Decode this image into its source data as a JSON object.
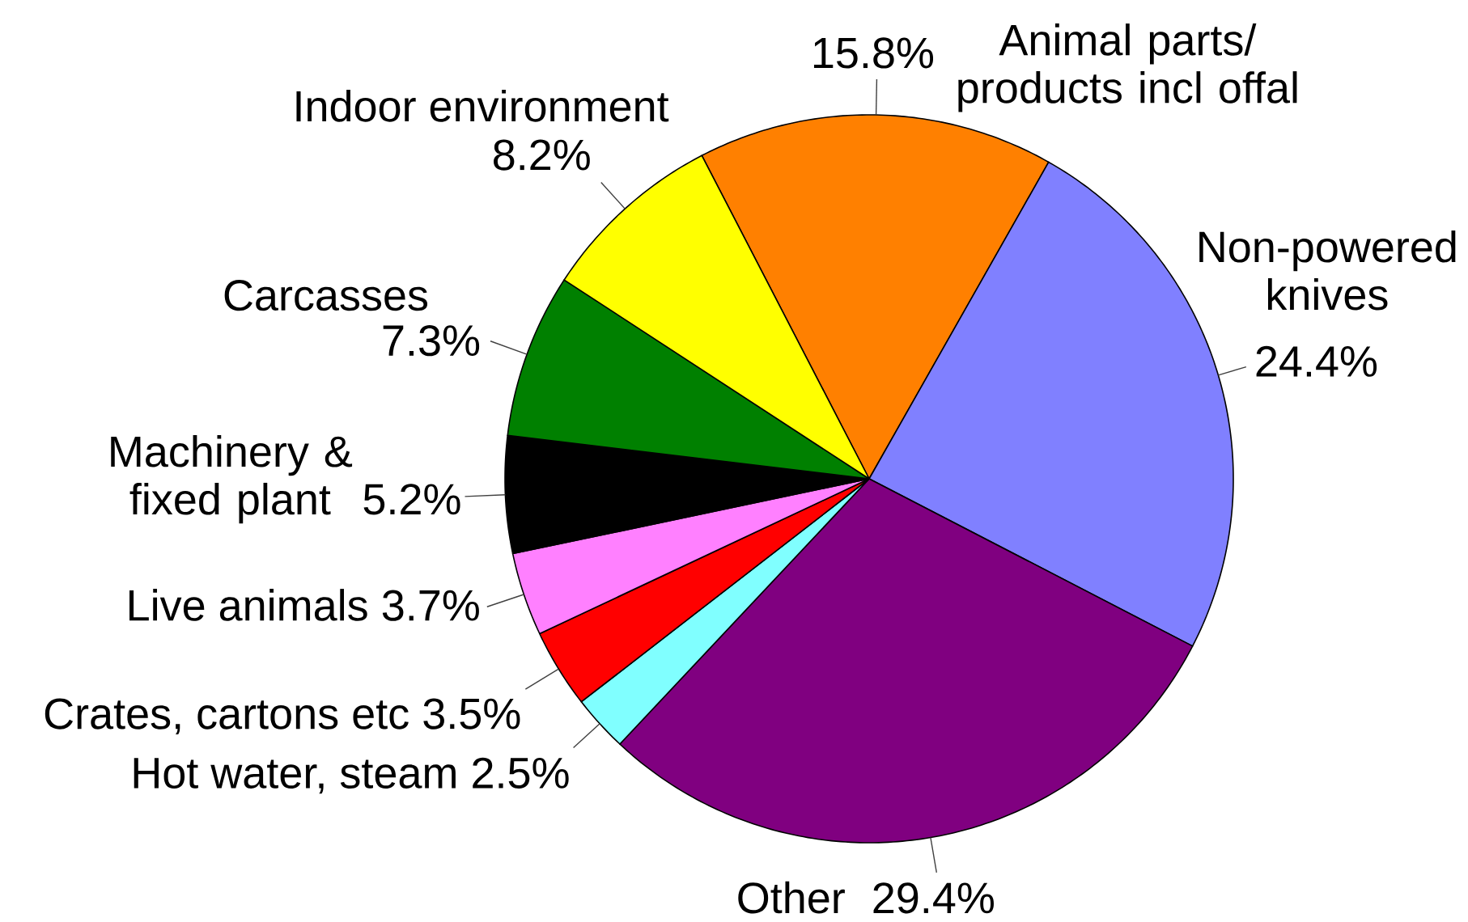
{
  "chart_data": {
    "type": "pie",
    "categories": [
      "Animal parts/ products incl offal",
      "Non-powered knives",
      "Other",
      "Hot water, steam",
      "Crates, cartons etc",
      "Live animals",
      "Machinery & fixed plant",
      "Carcasses",
      "Indoor environment"
    ],
    "values": [
      15.8,
      24.4,
      29.4,
      2.5,
      3.5,
      3.7,
      5.2,
      7.3,
      8.2
    ],
    "value_labels": [
      "15.8%",
      "24.4%",
      "29.4%",
      "2.5%",
      "3.5%",
      "3.7%",
      "5.2%",
      "7.3%",
      "8.2%"
    ],
    "colors": [
      "#ff8000",
      "#8080ff",
      "#800080",
      "#80ffff",
      "#ff0000",
      "#ff80ff",
      "#000000",
      "#008000",
      "#ffff00"
    ]
  }
}
